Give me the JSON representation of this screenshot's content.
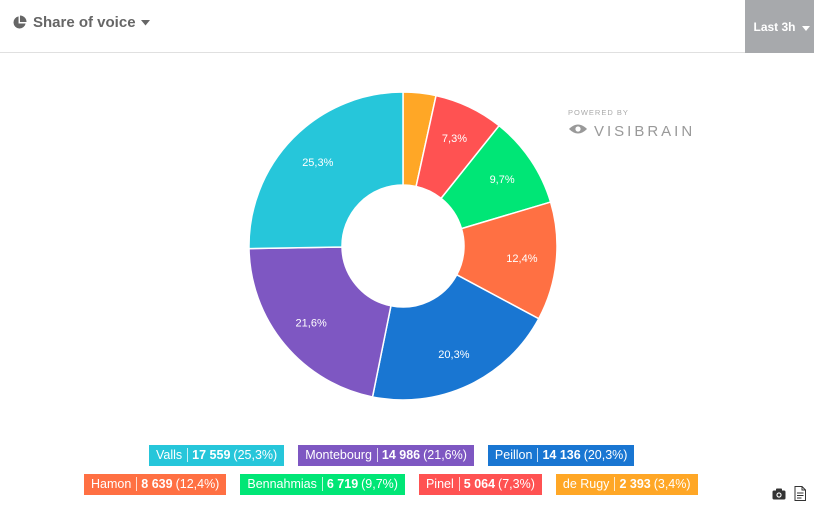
{
  "header": {
    "title": "Share of voice",
    "range_label": "Last 3h"
  },
  "powered": {
    "small": "POWERED BY",
    "brand": "VISIBRAIN"
  },
  "chart_data": {
    "type": "pie",
    "donut": true,
    "title": "",
    "categories": [
      "Valls",
      "Montebourg",
      "Peillon",
      "Hamon",
      "Bennahmias",
      "Pinel",
      "de Rugy"
    ],
    "values": [
      17559,
      14986,
      14136,
      8639,
      6719,
      5064,
      2393
    ],
    "percent_labels": [
      "25,3%",
      "21,6%",
      "20,3%",
      "12,4%",
      "9,7%",
      "7,3%",
      "3,4%"
    ],
    "colors": [
      "#26c6da",
      "#7e57c2",
      "#1976d2",
      "#ff7043",
      "#00e676",
      "#ff5252",
      "#ffa726"
    ],
    "legend": [
      {
        "name": "Valls",
        "value": "17 559",
        "pct": "(25,3%)"
      },
      {
        "name": "Montebourg",
        "value": "14 986",
        "pct": "(21,6%)"
      },
      {
        "name": "Peillon",
        "value": "14 136",
        "pct": "(20,3%)"
      },
      {
        "name": "Hamon",
        "value": "8 639",
        "pct": "(12,4%)"
      },
      {
        "name": "Bennahmias",
        "value": "6 719",
        "pct": "(9,7%)"
      },
      {
        "name": "Pinel",
        "value": "5 064",
        "pct": "(7,3%)"
      },
      {
        "name": "de Rugy",
        "value": "2 393",
        "pct": "(3,4%)"
      }
    ],
    "legend_placement": "bottom"
  },
  "tools": {
    "camera_icon": "camera-icon",
    "export_icon": "export-document-icon"
  }
}
